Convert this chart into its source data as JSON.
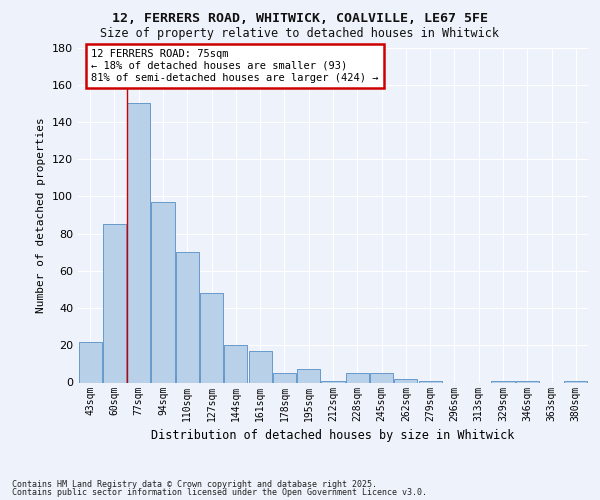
{
  "title1": "12, FERRERS ROAD, WHITWICK, COALVILLE, LE67 5FE",
  "title2": "Size of property relative to detached houses in Whitwick",
  "xlabel": "Distribution of detached houses by size in Whitwick",
  "ylabel": "Number of detached properties",
  "categories": [
    "43sqm",
    "60sqm",
    "77sqm",
    "94sqm",
    "110sqm",
    "127sqm",
    "144sqm",
    "161sqm",
    "178sqm",
    "195sqm",
    "212sqm",
    "228sqm",
    "245sqm",
    "262sqm",
    "279sqm",
    "296sqm",
    "313sqm",
    "329sqm",
    "346sqm",
    "363sqm",
    "380sqm"
  ],
  "values": [
    22,
    85,
    150,
    97,
    70,
    48,
    20,
    17,
    5,
    7,
    1,
    5,
    5,
    2,
    1,
    0,
    0,
    1,
    1,
    0,
    1
  ],
  "bar_color": "#b8d0e8",
  "bar_edge_color": "#6699cc",
  "bar_linewidth": 0.7,
  "background_color": "#eef2fa",
  "grid_color": "#ffffff",
  "annotation_box_color": "#ffffff",
  "annotation_box_edge": "#cc0000",
  "red_line_index": 2,
  "annotation_title": "12 FERRERS ROAD: 75sqm",
  "annotation_line1": "← 18% of detached houses are smaller (93)",
  "annotation_line2": "81% of semi-detached houses are larger (424) →",
  "footer1": "Contains HM Land Registry data © Crown copyright and database right 2025.",
  "footer2": "Contains public sector information licensed under the Open Government Licence v3.0.",
  "ylim": [
    0,
    180
  ],
  "yticks": [
    0,
    20,
    40,
    60,
    80,
    100,
    120,
    140,
    160,
    180
  ]
}
